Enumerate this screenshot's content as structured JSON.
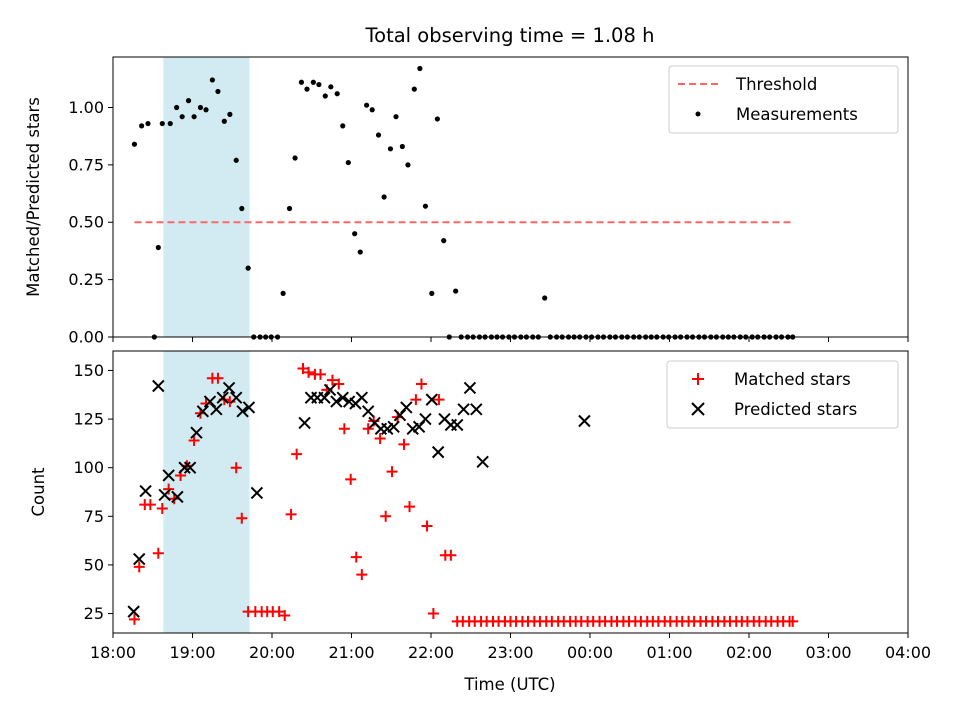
{
  "chart_data": {
    "title": "Total observing time = 1.08 h",
    "xlabel": "Time (UTC)",
    "x_tick_labels": [
      "18:00",
      "19:00",
      "20:00",
      "21:00",
      "22:00",
      "23:00",
      "00:00",
      "01:00",
      "02:00",
      "03:00",
      "04:00"
    ],
    "xlim": [
      "18:00",
      "04:00"
    ],
    "x_unit": "hours after 18:00 UTC (time axis, rolls past midnight)",
    "highlight_span": {
      "start": "18:38",
      "end": "19:43",
      "color": "#add8e6"
    },
    "panels": [
      {
        "type": "scatter",
        "ylabel": "Matched/Predicted stars",
        "ylim": [
          0,
          1.22
        ],
        "y_ticks": [
          "0.00",
          "0.25",
          "0.50",
          "0.75",
          "1.00"
        ],
        "legend": "top-right",
        "series": [
          {
            "name": "Threshold",
            "style": "dashed-line",
            "color": "#ff6666",
            "x": [
              0.27,
              8.55
            ],
            "y": [
              0.5,
              0.5
            ]
          },
          {
            "name": "Measurements",
            "style": "dot",
            "color": "#000000",
            "x": [
              0.27,
              0.36,
              0.44,
              0.52,
              0.57,
              0.62,
              0.72,
              0.8,
              0.87,
              0.95,
              1.02,
              1.1,
              1.17,
              1.25,
              1.32,
              1.4,
              1.47,
              1.55,
              1.62,
              1.7,
              1.77,
              1.85,
              1.92,
              1.99,
              2.07,
              2.14,
              2.22,
              2.29,
              2.37,
              2.44,
              2.52,
              2.59,
              2.67,
              2.74,
              2.82,
              2.89,
              2.96,
              3.04,
              3.11,
              3.19,
              3.26,
              3.34,
              3.41,
              3.49,
              3.56,
              3.64,
              3.71,
              3.79,
              3.86,
              3.93,
              4.01,
              4.08,
              4.16,
              4.23,
              4.31,
              4.38,
              4.46,
              4.53,
              4.61,
              4.68,
              4.76,
              4.83,
              4.9,
              4.98,
              5.05,
              5.13,
              5.2,
              5.28,
              5.35,
              5.43,
              5.5,
              5.58,
              5.65,
              5.73,
              5.8,
              5.87,
              5.95,
              6.02,
              6.1,
              6.17,
              6.25,
              6.32,
              6.4,
              6.47,
              6.55,
              6.62,
              6.7,
              6.77,
              6.84,
              6.92,
              6.99,
              7.07,
              7.14,
              7.22,
              7.29,
              7.37,
              7.44,
              7.52,
              7.59,
              7.67,
              7.74,
              7.81,
              7.89,
              7.96,
              8.04,
              8.11,
              8.19,
              8.26,
              8.34,
              8.41,
              8.49,
              8.55
            ],
            "y": [
              0.84,
              0.92,
              0.93,
              0.0,
              0.39,
              0.93,
              0.93,
              1.0,
              0.96,
              1.03,
              0.96,
              1.0,
              0.99,
              1.12,
              1.07,
              0.94,
              0.97,
              0.77,
              0.56,
              0.3,
              0.0,
              0.0,
              0.0,
              0.0,
              0.0,
              0.19,
              0.56,
              0.78,
              1.11,
              1.08,
              1.11,
              1.1,
              1.05,
              1.09,
              1.06,
              0.92,
              0.76,
              0.45,
              0.37,
              1.01,
              0.99,
              0.88,
              0.61,
              0.82,
              0.96,
              0.83,
              0.75,
              1.08,
              1.17,
              0.57,
              0.19,
              0.95,
              0.42,
              0.0,
              0.2,
              0.0,
              0.0,
              0.0,
              0.0,
              0.0,
              0.0,
              0.0,
              0.0,
              0.0,
              0.0,
              0.0,
              0.0,
              0.0,
              0.0,
              0.17,
              0.0,
              0.0,
              0.0,
              0.0,
              0.0,
              0.0,
              0.0,
              0.0,
              0.0,
              0.0,
              0.0,
              0.0,
              0.0,
              0.0,
              0.0,
              0.0,
              0.0,
              0.0,
              0.0,
              0.0,
              0.0,
              0.0,
              0.0,
              0.0,
              0.0,
              0.0,
              0.0,
              0.0,
              0.0,
              0.0,
              0.0,
              0.0,
              0.0,
              0.0,
              0.0,
              0.0,
              0.0,
              0.0,
              0.0,
              0.0,
              0.0,
              0.0
            ]
          }
        ]
      },
      {
        "type": "scatter",
        "ylabel": "Count",
        "ylim": [
          15,
          160
        ],
        "y_ticks": [
          "25",
          "50",
          "75",
          "100",
          "125",
          "150"
        ],
        "legend": "top-right",
        "series": [
          {
            "name": "Matched stars",
            "style": "plus",
            "color": "#ff0000",
            "x": [
              0.27,
              0.33,
              0.4,
              0.47,
              0.57,
              0.62,
              0.7,
              0.77,
              0.85,
              0.93,
              1.02,
              1.1,
              1.17,
              1.25,
              1.32,
              1.4,
              1.47,
              1.55,
              1.62,
              1.7,
              1.79,
              1.87,
              1.94,
              2.01,
              2.09,
              2.16,
              2.24,
              2.31,
              2.39,
              2.46,
              2.54,
              2.61,
              2.69,
              2.76,
              2.84,
              2.91,
              2.99,
              3.06,
              3.13,
              3.21,
              3.28,
              3.36,
              3.43,
              3.51,
              3.58,
              3.66,
              3.73,
              3.81,
              3.88,
              3.95,
              4.03,
              4.1,
              4.18,
              4.25,
              4.33,
              4.4,
              4.48,
              4.55,
              4.63,
              4.7,
              4.78,
              4.85,
              4.93,
              5.0,
              5.07,
              5.15,
              5.22,
              5.3,
              5.37,
              5.45,
              5.52,
              5.6,
              5.67,
              5.75,
              5.82,
              5.89,
              5.97,
              6.04,
              6.12,
              6.19,
              6.27,
              6.34,
              6.42,
              6.49,
              6.57,
              6.64,
              6.72,
              6.79,
              6.86,
              6.94,
              7.01,
              7.09,
              7.16,
              7.24,
              7.31,
              7.39,
              7.46,
              7.54,
              7.61,
              7.69,
              7.76,
              7.84,
              7.91,
              7.98,
              8.06,
              8.13,
              8.21,
              8.28,
              8.36,
              8.43,
              8.51,
              8.55
            ],
            "y": [
              22,
              49,
              81,
              81,
              56,
              79,
              89,
              84,
              96,
              101,
              114,
              128,
              133,
              146,
              146,
              135,
              134,
              100,
              74,
              26,
              26,
              26,
              26,
              26,
              26,
              24,
              76,
              107,
              151,
              149,
              148,
              148,
              140,
              145,
              143,
              120,
              94,
              54,
              45,
              120,
              124,
              115,
              75,
              98,
              126,
              112,
              80,
              135,
              143,
              70,
              25,
              135,
              55,
              55,
              21,
              21,
              21,
              21,
              21,
              21,
              21,
              21,
              21,
              21,
              21,
              21,
              21,
              21,
              21,
              21,
              21,
              21,
              21,
              21,
              21,
              21,
              21,
              21,
              21,
              21,
              21,
              21,
              21,
              21,
              21,
              21,
              21,
              21,
              21,
              21,
              21,
              21,
              21,
              21,
              21,
              21,
              21,
              21,
              21,
              21,
              21,
              21,
              21,
              21,
              21,
              21,
              21,
              21,
              21,
              21,
              21,
              21
            ]
          },
          {
            "name": "Predicted stars",
            "style": "x",
            "color": "#000000",
            "x": [
              0.26,
              0.33,
              0.41,
              0.57,
              0.65,
              0.7,
              0.81,
              0.9,
              0.97,
              1.05,
              1.13,
              1.22,
              1.3,
              1.38,
              1.46,
              1.55,
              1.63,
              1.71,
              1.81,
              2.41,
              2.49,
              2.57,
              2.66,
              2.73,
              2.81,
              2.89,
              2.97,
              3.05,
              3.13,
              3.21,
              3.29,
              3.37,
              3.45,
              3.53,
              3.61,
              3.69,
              3.77,
              3.85,
              3.93,
              4.01,
              4.09,
              4.17,
              4.25,
              4.33,
              4.41,
              4.49,
              4.57,
              4.65,
              5.93
            ],
            "y": [
              26,
              53,
              88,
              142,
              86,
              96,
              85,
              100,
              100,
              118,
              129,
              134,
              130,
              136,
              141,
              136,
              129,
              131,
              87,
              123,
              136,
              136,
              136,
              140,
              134,
              136,
              134,
              133,
              136,
              129,
              123,
              120,
              120,
              121,
              127,
              131,
              120,
              121,
              125,
              135,
              108,
              125,
              122,
              122,
              130,
              141,
              130,
              103,
              124
            ]
          }
        ]
      }
    ]
  }
}
